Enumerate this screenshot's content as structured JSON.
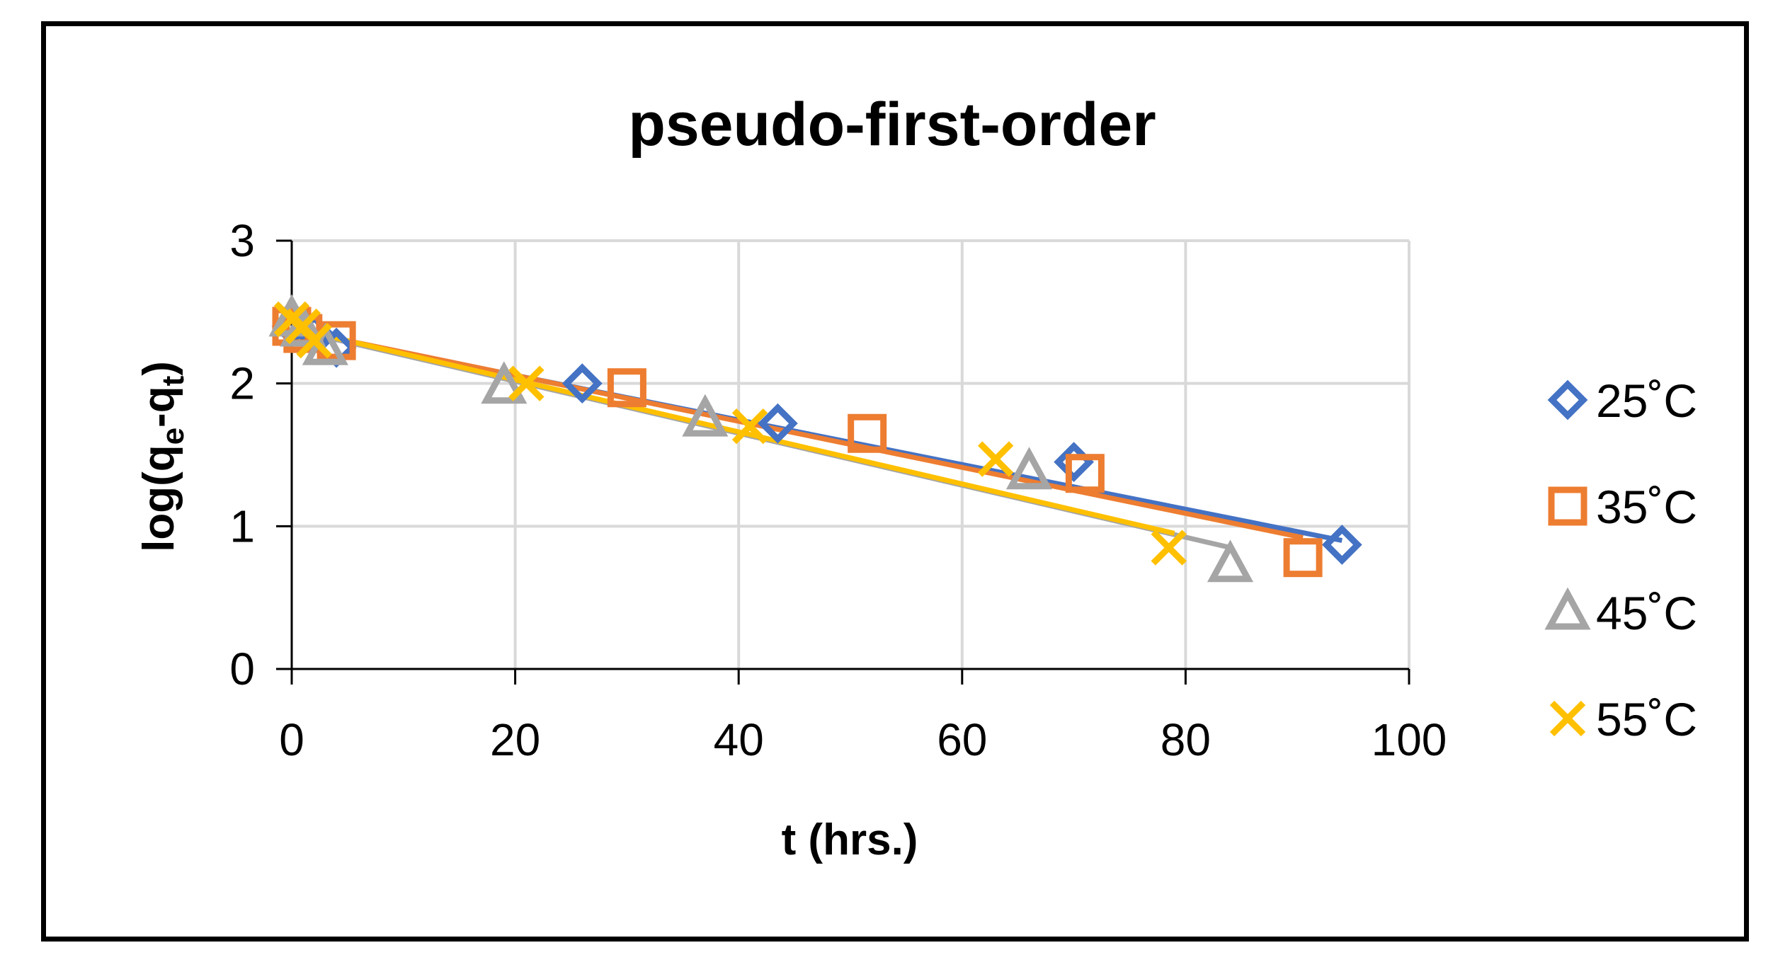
{
  "chart_data": {
    "type": "scatter",
    "title": "pseudo-first-order",
    "xlabel": "t (hrs.)",
    "ylabel_main": "log(q",
    "ylabel_sub1": "e",
    "ylabel_mid": "-q",
    "ylabel_sub2": "t",
    "ylabel_end": ")",
    "xlim": [
      0,
      100
    ],
    "ylim": [
      0,
      3
    ],
    "xticks": [
      0,
      20,
      40,
      60,
      80,
      100
    ],
    "yticks": [
      0,
      1,
      2,
      3
    ],
    "grid": true,
    "legend_position": "right",
    "trendlines": true,
    "series": [
      {
        "name": "25˚C",
        "marker": "diamond",
        "color": "#4472C4",
        "x": [
          0,
          2,
          4,
          26,
          43.5,
          70,
          94
        ],
        "y": [
          2.4,
          2.35,
          2.25,
          2.0,
          1.72,
          1.45,
          0.87
        ],
        "trend": [
          2.37,
          0.9
        ]
      },
      {
        "name": "35˚C",
        "marker": "square",
        "color": "#ED7D31",
        "x": [
          0,
          1,
          4,
          30,
          51.5,
          71,
          90.5
        ],
        "y": [
          2.4,
          2.35,
          2.3,
          1.97,
          1.65,
          1.37,
          0.78
        ],
        "trend": [
          2.38,
          0.92
        ]
      },
      {
        "name": "45˚C",
        "marker": "triangle",
        "color": "#A5A5A5",
        "x": [
          0,
          1,
          3,
          19,
          37,
          66,
          84
        ],
        "y": [
          2.45,
          2.38,
          2.25,
          1.98,
          1.75,
          1.38,
          0.73
        ],
        "trend": [
          2.38,
          0.85
        ]
      },
      {
        "name": "55˚C",
        "marker": "x",
        "color": "#FFC000",
        "x": [
          0,
          1,
          2,
          21,
          41,
          63,
          78.5
        ],
        "y": [
          2.45,
          2.4,
          2.3,
          2.0,
          1.7,
          1.47,
          0.85
        ],
        "trend": [
          2.39,
          0.95
        ],
        "trend_x_end": 79
      }
    ]
  }
}
